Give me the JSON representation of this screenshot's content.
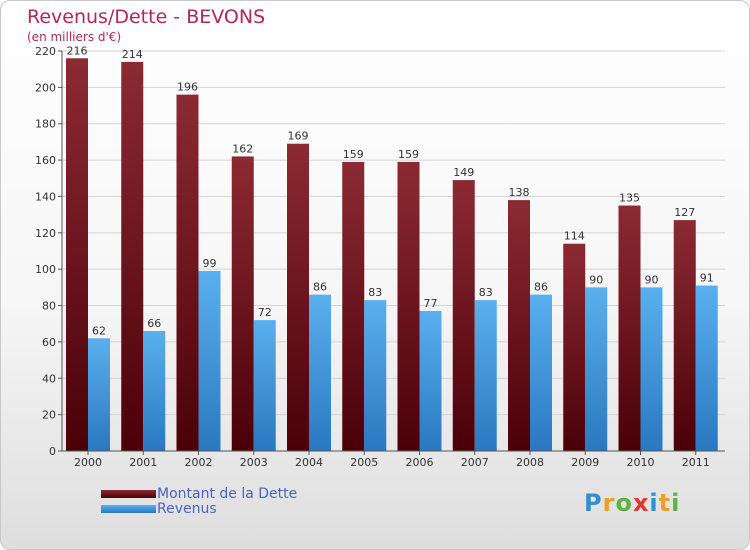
{
  "header": {
    "title": "Revenus/Dette - BEVONS",
    "subtitle": "(en milliers d'€)"
  },
  "legend": {
    "items": [
      {
        "label": "Montant de la Dette",
        "color": "#6a0a14"
      },
      {
        "label": "Revenus",
        "color": "#3f9ae0"
      }
    ]
  },
  "logo": {
    "text": "Proxiti",
    "letters": [
      {
        "ch": "P",
        "color": "#2e8fd1"
      },
      {
        "ch": "r",
        "color": "#f0a020"
      },
      {
        "ch": "o",
        "color": "#5cb63c"
      },
      {
        "ch": "x",
        "color": "#e8342a"
      },
      {
        "ch": "i",
        "color": "#2e8fd1"
      },
      {
        "ch": "t",
        "color": "#f0a020"
      },
      {
        "ch": "i",
        "color": "#5cb63c"
      }
    ]
  },
  "chart_data": {
    "type": "bar",
    "title": "Revenus/Dette - BEVONS",
    "ylabel": "(en milliers d'€)",
    "xlabel": "",
    "categories": [
      "2000",
      "2001",
      "2002",
      "2003",
      "2004",
      "2005",
      "2006",
      "2007",
      "2008",
      "2009",
      "2010",
      "2011"
    ],
    "series": [
      {
        "name": "Montant de la Dette",
        "color": "#6a0a14",
        "values": [
          216,
          214,
          196,
          162,
          169,
          159,
          159,
          149,
          138,
          114,
          135,
          127
        ]
      },
      {
        "name": "Revenus",
        "color": "#3f9ae0",
        "values": [
          62,
          66,
          99,
          72,
          86,
          83,
          77,
          83,
          86,
          90,
          90,
          91
        ]
      }
    ],
    "ylim": [
      0,
      220
    ],
    "yticks": [
      0,
      20,
      40,
      60,
      80,
      100,
      120,
      140,
      160,
      180,
      200,
      220
    ],
    "grid": true,
    "legend_position": "bottom-left",
    "data_labels": true
  }
}
